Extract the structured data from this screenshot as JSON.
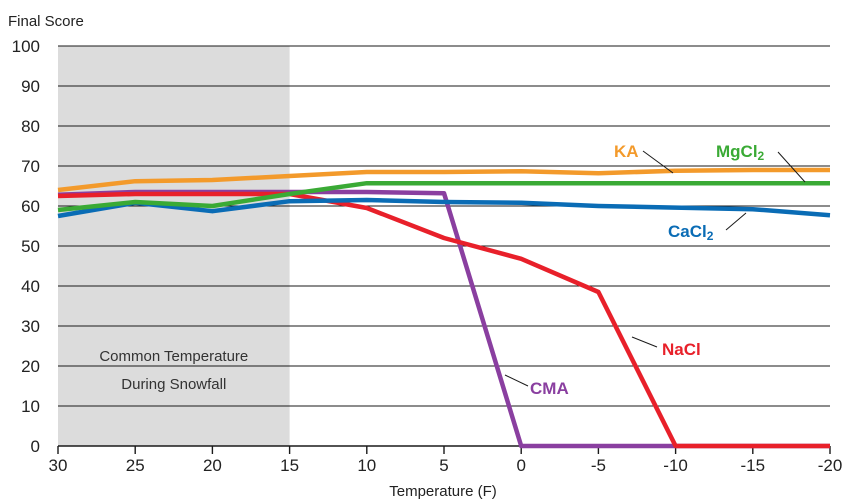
{
  "chart_data": {
    "type": "line",
    "ylabel": "Final Score",
    "xlabel": "Temperature (F)",
    "ylim": [
      0,
      100
    ],
    "yticks": [
      0,
      10,
      20,
      30,
      40,
      50,
      60,
      70,
      80,
      90,
      100
    ],
    "x": [
      30,
      25,
      20,
      15,
      10,
      5,
      0,
      -5,
      -10,
      -15,
      -20
    ],
    "xlim": [
      30,
      -20
    ],
    "grid": "horizontal",
    "shaded_region": {
      "x_from": 30,
      "x_to": 15,
      "label_line1": "Common Temperature",
      "label_line2": "During Snowfall",
      "color": "#dcdcdc"
    },
    "series": [
      {
        "name": "KA",
        "color": "#f39a2b",
        "values": [
          64,
          66.2,
          66.5,
          67.5,
          68.5,
          68.5,
          68.7,
          68.2,
          68.8,
          69,
          69
        ]
      },
      {
        "name": "MgCl",
        "subscript": "2",
        "color": "#3aaa35",
        "values": [
          59,
          61,
          60,
          63,
          65.7,
          65.7,
          65.7,
          65.7,
          65.7,
          65.7,
          65.7
        ]
      },
      {
        "name": "CaCl",
        "subscript": "2",
        "color": "#0a6cb5",
        "values": [
          57.5,
          60.8,
          58.7,
          61.2,
          61.5,
          61,
          60.8,
          60,
          59.6,
          59.2,
          57.7
        ]
      },
      {
        "name": "NaCl",
        "color": "#e8202a",
        "values": [
          62.5,
          63,
          63,
          63,
          59.5,
          52,
          46.8,
          38.5,
          0,
          0,
          0
        ]
      },
      {
        "name": "CMA",
        "color": "#8a3fa0",
        "values": [
          62.8,
          63.5,
          63.5,
          63.5,
          63.5,
          63.2,
          0,
          0,
          0,
          0,
          0
        ]
      }
    ]
  }
}
